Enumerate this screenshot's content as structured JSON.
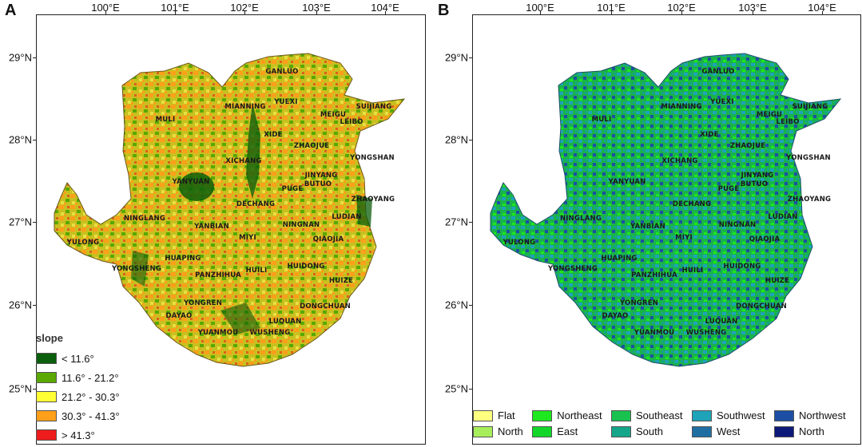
{
  "panels": [
    {
      "label": "A"
    },
    {
      "label": "B"
    }
  ],
  "axes": {
    "lon_ticks": [
      "100°E",
      "101°E",
      "102°E",
      "103°E",
      "104°E"
    ],
    "lat_ticks": [
      "29°N",
      "28°N",
      "27°N",
      "26°N",
      "25°N"
    ]
  },
  "places": [
    "GANLUO",
    "YUEXI",
    "MIANNING",
    "MEIGU",
    "SUIJIANG",
    "LEIBO",
    "MULI",
    "XIDE",
    "ZHAOJUE",
    "XICHANG",
    "YONGSHAN",
    "JINYANG",
    "YANYUAN",
    "PUGE",
    "BUTUO",
    "ZHAOYANG",
    "DECHANG",
    "LUDIAN",
    "NINGLANG",
    "NINGNAN",
    "YANBIAN",
    "MIYI",
    "QIAOJIA",
    "YULONG",
    "HUAPING",
    "HUIDONG",
    "YONGSHENG",
    "PANZHIHUA",
    "HUILI",
    "HUIZE",
    "YONGREN",
    "DONGCHUAN",
    "DAYAO",
    "LUQUAN",
    "YUANMOU",
    "WUSHENG"
  ],
  "legend_slope": {
    "title": "slope",
    "items": [
      {
        "label": "< 11.6°",
        "color": "#0b5e0b"
      },
      {
        "label": "11.6° - 21.2°",
        "color": "#5aa800"
      },
      {
        "label": "21.2° - 30.3°",
        "color": "#ffff33"
      },
      {
        "label": "30.3° - 41.3°",
        "color": "#ff9f1a"
      },
      {
        "label": "> 41.3°",
        "color": "#ee1c1c"
      }
    ]
  },
  "legend_aspect": {
    "items": [
      {
        "label": "Flat",
        "color": "#ffff80"
      },
      {
        "label": "Northeast",
        "color": "#1ee81e"
      },
      {
        "label": "Southeast",
        "color": "#19c14f"
      },
      {
        "label": "Southwest",
        "color": "#1ea3b9"
      },
      {
        "label": "Northwest",
        "color": "#1c4fa3"
      },
      {
        "label": "North",
        "color": "#a8ee5c"
      },
      {
        "label": "East",
        "color": "#13d62a"
      },
      {
        "label": "South",
        "color": "#15a58a"
      },
      {
        "label": "West",
        "color": "#1f6fa3"
      },
      {
        "label": "North",
        "color": "#0d1a7a"
      }
    ]
  }
}
